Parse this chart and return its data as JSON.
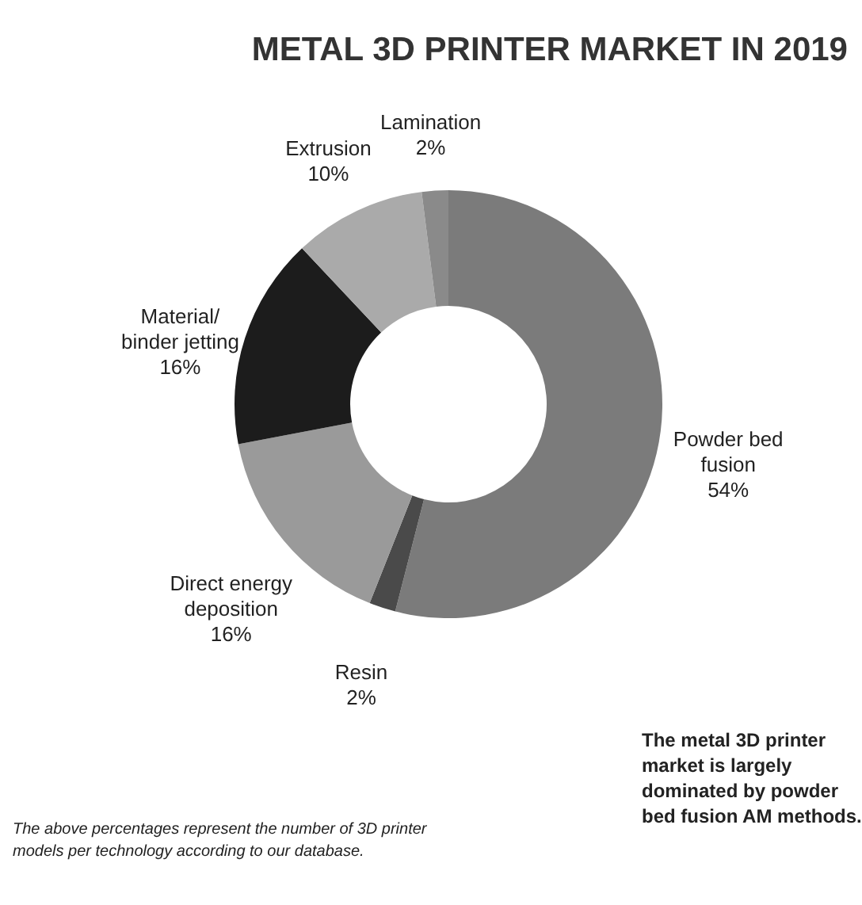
{
  "chart_data": {
    "type": "donut",
    "title": "METAL 3D PRINTER MARKET IN 2019",
    "categories": [
      "Powder bed fusion",
      "Resin",
      "Direct energy deposition",
      "Material/ binder jetting",
      "Extrusion",
      "Lamination"
    ],
    "values": [
      54,
      2,
      16,
      16,
      10,
      2
    ],
    "value_labels": [
      "54%",
      "2%",
      "16%",
      "16%",
      "10%",
      "2%"
    ],
    "colors": [
      "#7b7b7b",
      "#4a4a4a",
      "#9a9a9a",
      "#1c1c1c",
      "#aaaaaa",
      "#8a8a8a"
    ],
    "annotations": [
      "The above percentages represent the number of 3D printer models per technology according to our database.",
      "The metal 3D printer market is largely dominated by powder bed fusion AM methods."
    ]
  }
}
